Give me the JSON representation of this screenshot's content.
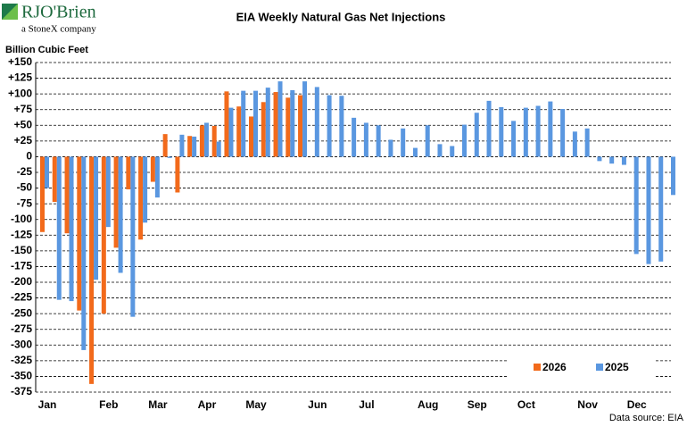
{
  "logo": {
    "name": "RJO'Brien",
    "tagline": "a StoneX company"
  },
  "chart_data": {
    "type": "bar",
    "title": "EIA Weekly Natural Gas Net Injections",
    "y_label": "Billion Cubic Feet",
    "source": "Data source: EIA",
    "categories": [
      "Jan",
      null,
      null,
      null,
      null,
      "Feb",
      null,
      null,
      null,
      "Mar",
      null,
      null,
      null,
      "Apr",
      null,
      null,
      null,
      "May",
      null,
      null,
      null,
      null,
      "Jun",
      null,
      null,
      null,
      "Jul",
      null,
      null,
      null,
      null,
      "Aug",
      null,
      null,
      null,
      "Sep",
      null,
      null,
      null,
      "Oct",
      null,
      null,
      null,
      null,
      "Nov",
      null,
      null,
      null,
      "Dec",
      null,
      null,
      null
    ],
    "series": [
      {
        "name": "2026",
        "color": "#f26a1b",
        "values": [
          -120,
          -72,
          -122,
          -245,
          -362,
          -250,
          -145,
          -52,
          -132,
          -40,
          36,
          -57,
          33,
          50,
          49,
          104,
          80,
          64,
          87,
          103,
          94,
          98,
          null,
          null,
          null,
          null,
          null,
          null,
          null,
          null,
          null,
          null,
          null,
          null,
          null,
          null,
          null,
          null,
          null,
          null,
          null,
          null,
          null,
          null,
          null,
          null,
          null,
          null,
          null,
          null,
          null,
          null
        ]
      },
      {
        "name": "2025",
        "color": "#5a97e0",
        "values": [
          -50,
          -228,
          -230,
          -308,
          -196,
          -112,
          -185,
          -255,
          -105,
          -65,
          -2,
          35,
          32,
          54,
          24,
          78,
          105,
          105,
          110,
          120,
          106,
          120,
          111,
          98,
          97,
          62,
          54,
          50,
          27,
          45,
          14,
          50,
          20,
          17,
          51,
          70,
          89,
          79,
          57,
          78,
          81,
          88,
          76,
          40,
          45,
          -7,
          -11,
          -13,
          -155,
          -171,
          -167,
          -61
        ]
      }
    ],
    "ylim": [
      -375,
      150
    ],
    "yticks": [
      {
        "value": 150,
        "label": "+150"
      },
      {
        "value": 125,
        "label": "+125"
      },
      {
        "value": 100,
        "label": "+100"
      },
      {
        "value": 75,
        "label": "+75"
      },
      {
        "value": 50,
        "label": "+50"
      },
      {
        "value": 25,
        "label": "+25"
      },
      0,
      -25,
      -50,
      -75,
      -100,
      -125,
      -150,
      -175,
      -200,
      -225,
      -250,
      -275,
      -300,
      -325,
      -350,
      -375
    ],
    "grid": true,
    "legend": "lower right"
  }
}
